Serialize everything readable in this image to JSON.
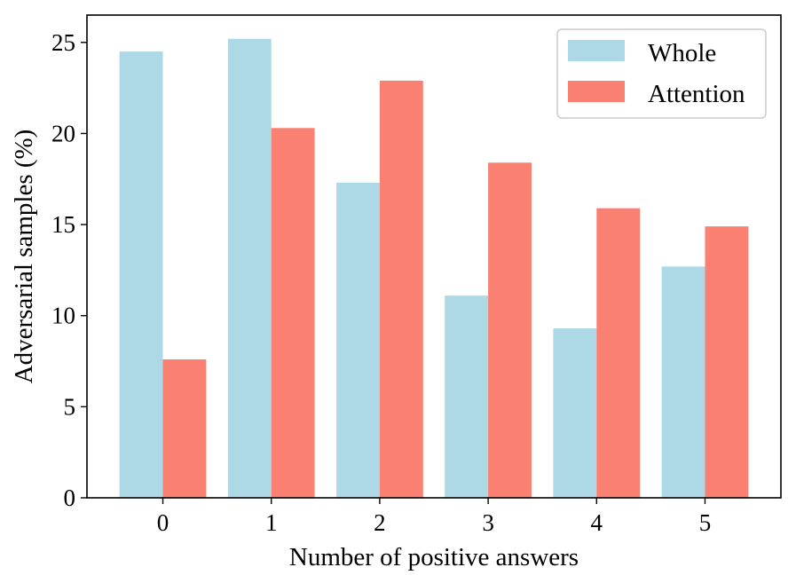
{
  "chart_data": {
    "type": "bar",
    "categories": [
      "0",
      "1",
      "2",
      "3",
      "4",
      "5"
    ],
    "series": [
      {
        "name": "Whole",
        "color": "#add8e6",
        "values": [
          24.5,
          25.2,
          17.3,
          11.1,
          9.3,
          12.7
        ]
      },
      {
        "name": "Attention",
        "color": "#fa8072",
        "values": [
          7.6,
          20.3,
          22.9,
          18.4,
          15.9,
          14.9
        ]
      }
    ],
    "title": "",
    "xlabel": "Number of positive answers",
    "ylabel": "Adversarial samples (%)",
    "ylim": [
      0,
      26.5
    ],
    "yticks": [
      0,
      5,
      10,
      15,
      20,
      25
    ],
    "grid": false,
    "legend_position": "top-right"
  }
}
